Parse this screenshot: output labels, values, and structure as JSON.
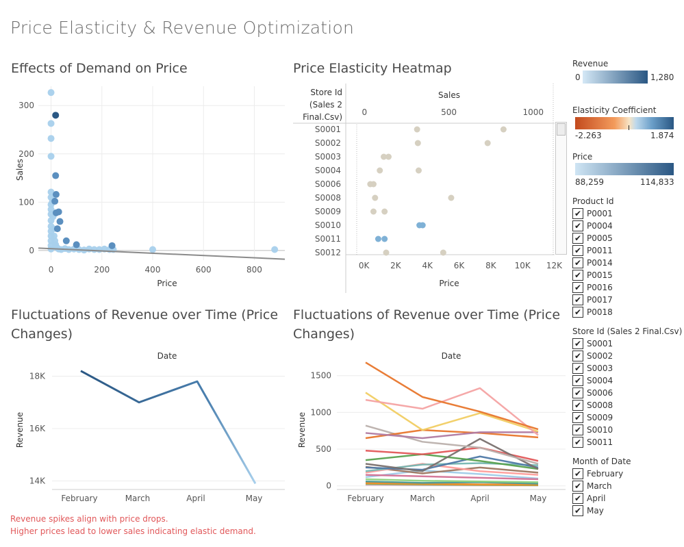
{
  "dashboard": {
    "title": "Price Elasticity & Revenue Optimization"
  },
  "scatter": {
    "title": "Effects of Demand on Price",
    "xlabel": "Price",
    "ylabel": "Sales",
    "xticks": [
      "0",
      "200",
      "400",
      "600",
      "800"
    ],
    "yticks": [
      "0",
      "100",
      "200",
      "300"
    ]
  },
  "heatmap": {
    "title": "Price Elasticity Heatmap",
    "row_header": [
      "Store Id",
      "(Sales 2",
      "Final.Csv)"
    ],
    "top_axis_label": "Sales",
    "top_ticks": [
      "0",
      "500",
      "1000"
    ],
    "bottom_axis_label": "Price",
    "bottom_ticks": [
      "0K",
      "2K",
      "4K",
      "6K",
      "8K",
      "10K",
      "12K"
    ],
    "stores": [
      "S0001",
      "S0002",
      "S0003",
      "S0004",
      "S0006",
      "S0008",
      "S0009",
      "S0010",
      "S0011",
      "S0012"
    ]
  },
  "revenue_left": {
    "title_line1": "Fluctuations of Revenue over Time (Price",
    "title_line2": "Changes)",
    "header": "Date",
    "ylabel": "Revenue",
    "months": [
      "February",
      "March",
      "April",
      "May"
    ],
    "yticks": [
      "14K",
      "16K",
      "18K"
    ]
  },
  "revenue_right": {
    "title_line1": "Fluctuations of Revenue over Time (Price",
    "title_line2": "Changes)",
    "header": "Date",
    "ylabel": "Revenue",
    "months": [
      "February",
      "March",
      "April",
      "May"
    ],
    "yticks": [
      "0",
      "500",
      "1000",
      "1500"
    ]
  },
  "notes": {
    "line1": "Revenue spikes align with price drops.",
    "line2": "Higher prices lead to lower sales indicating elastic demand."
  },
  "legends": {
    "revenue": {
      "title": "Revenue",
      "min": "0",
      "max": "1,280"
    },
    "elasticity": {
      "title": "Elasticity Coefficient",
      "min": "-2.263",
      "max": "1.874"
    },
    "price": {
      "title": "Price",
      "min": "88,259",
      "max": "114,833"
    }
  },
  "filters": {
    "product": {
      "title": "Product Id",
      "items": [
        "P0001",
        "P0004",
        "P0005",
        "P0011",
        "P0014",
        "P0015",
        "P0016",
        "P0017",
        "P0018"
      ]
    },
    "store": {
      "title": "Store Id (Sales 2 Final.Csv)",
      "items": [
        "S0001",
        "S0002",
        "S0003",
        "S0004",
        "S0006",
        "S0008",
        "S0009",
        "S0010",
        "S0011"
      ]
    },
    "month": {
      "title": "Month of Date",
      "items": [
        "February",
        "March",
        "April",
        "May"
      ]
    },
    "check_glyph": "✔"
  },
  "colors": {
    "dark_blue": "#2a5783",
    "light_blue": "#b6d7ed",
    "heat_dot": "#d6d0c1",
    "note_red": "#e15759"
  },
  "chart_data": [
    {
      "type": "scatter",
      "title": "Effects of Demand on Price",
      "xlabel": "Price",
      "ylabel": "Sales",
      "xlim": [
        -50,
        920
      ],
      "ylim": [
        -20,
        340
      ],
      "points": [
        [
          0,
          327
        ],
        [
          0,
          263
        ],
        [
          0,
          232
        ],
        [
          0,
          195
        ],
        [
          0,
          121
        ],
        [
          0,
          110
        ],
        [
          0,
          95
        ],
        [
          0,
          85
        ],
        [
          0,
          75
        ],
        [
          0,
          62
        ],
        [
          0,
          50
        ],
        [
          0,
          40
        ],
        [
          0,
          30
        ],
        [
          0,
          20
        ],
        [
          0,
          10
        ],
        [
          0,
          3
        ],
        [
          5,
          100
        ],
        [
          8,
          70
        ],
        [
          10,
          45
        ],
        [
          12,
          30
        ],
        [
          15,
          20
        ],
        [
          18,
          12
        ],
        [
          20,
          8
        ],
        [
          25,
          5
        ],
        [
          30,
          3
        ],
        [
          40,
          2
        ],
        [
          55,
          4
        ],
        [
          70,
          2
        ],
        [
          90,
          3
        ],
        [
          110,
          2
        ],
        [
          130,
          1
        ],
        [
          150,
          3
        ],
        [
          170,
          2
        ],
        [
          190,
          2
        ],
        [
          210,
          3
        ],
        [
          230,
          2
        ],
        [
          245,
          2
        ],
        [
          400,
          2
        ],
        [
          880,
          2
        ]
      ],
      "dark_points": [
        [
          18,
          280
        ],
        [
          18,
          155
        ],
        [
          20,
          116
        ],
        [
          15,
          102
        ],
        [
          30,
          80
        ],
        [
          20,
          78
        ],
        [
          35,
          60
        ],
        [
          25,
          45
        ],
        [
          60,
          20
        ],
        [
          240,
          10
        ],
        [
          100,
          12
        ]
      ],
      "trend": {
        "x": [
          -50,
          920
        ],
        "y": [
          5,
          -18
        ]
      }
    },
    {
      "type": "scatter",
      "title": "Price Elasticity Heatmap",
      "categories": [
        "S0001",
        "S0002",
        "S0003",
        "S0004",
        "S0006",
        "S0008",
        "S0009",
        "S0010",
        "S0011",
        "S0012"
      ],
      "top_axis": "Sales",
      "top_range": [
        -50,
        1200
      ],
      "bottom_axis": "Price",
      "bottom_range": [
        -500,
        12800
      ],
      "points": [
        {
          "store": "S0001",
          "x": 3350
        },
        {
          "store": "S0001",
          "x": 8800
        },
        {
          "store": "S0002",
          "x": 3400
        },
        {
          "store": "S0002",
          "x": 7800
        },
        {
          "store": "S0003",
          "x": 1250
        },
        {
          "store": "S0003",
          "x": 1550
        },
        {
          "store": "S0004",
          "x": 1000
        },
        {
          "store": "S0004",
          "x": 3450
        },
        {
          "store": "S0006",
          "x": 400
        },
        {
          "store": "S0006",
          "x": 600
        },
        {
          "store": "S0008",
          "x": 700
        },
        {
          "store": "S0008",
          "x": 5500
        },
        {
          "store": "S0009",
          "x": 600
        },
        {
          "store": "S0009",
          "x": 1300
        },
        {
          "store": "S0010",
          "x": 3500,
          "blue": true
        },
        {
          "store": "S0010",
          "x": 3700,
          "blue": true
        },
        {
          "store": "S0011",
          "x": 900,
          "blue": true
        },
        {
          "store": "S0011",
          "x": 1300,
          "blue": true
        },
        {
          "store": "S0012",
          "x": 1400
        },
        {
          "store": "S0012",
          "x": 5000
        }
      ]
    },
    {
      "type": "line",
      "title": "Fluctuations of Revenue over Time (Price Changes)",
      "categories": [
        "February",
        "March",
        "April",
        "May"
      ],
      "ylabel": "Revenue",
      "ylim": [
        13700,
        18300
      ],
      "series": [
        {
          "values": [
            18200,
            17000,
            17800,
            13900
          ]
        }
      ]
    },
    {
      "type": "line",
      "title": "Fluctuations of Revenue over Time (Price Changes)",
      "categories": [
        "February",
        "March",
        "April",
        "May"
      ],
      "ylabel": "Revenue",
      "ylim": [
        -40,
        1600
      ],
      "series": [
        {
          "color": "#e8762c",
          "values": [
            1680,
            1210,
            1010,
            770
          ]
        },
        {
          "color": "#f4a3a3",
          "values": [
            1170,
            1050,
            1330,
            690
          ]
        },
        {
          "color": "#f1ce63",
          "values": [
            1270,
            760,
            990,
            740
          ]
        },
        {
          "color": "#b07aa1",
          "values": [
            720,
            650,
            730,
            730
          ]
        },
        {
          "color": "#e8762c",
          "values": [
            650,
            760,
            720,
            660
          ]
        },
        {
          "color": "#bab0ac",
          "values": [
            820,
            600,
            520,
            300
          ]
        },
        {
          "color": "#79706e",
          "values": [
            300,
            200,
            640,
            230
          ]
        },
        {
          "color": "#e15759",
          "values": [
            480,
            430,
            520,
            340
          ]
        },
        {
          "color": "#59a14f",
          "values": [
            350,
            430,
            340,
            230
          ]
        },
        {
          "color": "#4e79a7",
          "values": [
            250,
            220,
            400,
            250
          ]
        },
        {
          "color": "#76b7b2",
          "values": [
            200,
            290,
            310,
            280
          ]
        },
        {
          "color": "#ff9d9a",
          "values": [
            180,
            300,
            200,
            150
          ]
        },
        {
          "color": "#9d7660",
          "values": [
            260,
            170,
            250,
            180
          ]
        },
        {
          "color": "#d37295",
          "values": [
            150,
            130,
            110,
            90
          ]
        },
        {
          "color": "#a0cbe8",
          "values": [
            120,
            210,
            160,
            100
          ]
        },
        {
          "color": "#8cd17d",
          "values": [
            90,
            70,
            60,
            50
          ]
        },
        {
          "color": "#499894",
          "values": [
            60,
            40,
            50,
            30
          ]
        },
        {
          "color": "#f28e2b",
          "values": [
            40,
            30,
            20,
            20
          ]
        },
        {
          "color": "#b6992d",
          "values": [
            30,
            20,
            15,
            10
          ]
        },
        {
          "color": "#86bcb6",
          "values": [
            20,
            15,
            10,
            8
          ]
        },
        {
          "color": "#fabfd2",
          "values": [
            10,
            8,
            6,
            5
          ]
        }
      ]
    }
  ]
}
